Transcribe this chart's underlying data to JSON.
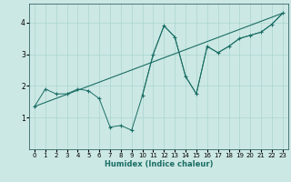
{
  "title": "",
  "xlabel": "Humidex (Indice chaleur)",
  "bg_color": "#cce8e4",
  "line_color": "#1a6e65",
  "grid_color": "#aad4d0",
  "xlim": [
    -0.5,
    23.5
  ],
  "ylim": [
    0,
    4.6
  ],
  "yticks": [
    1,
    2,
    3,
    4
  ],
  "xticks": [
    0,
    1,
    2,
    3,
    4,
    5,
    6,
    7,
    8,
    9,
    10,
    11,
    12,
    13,
    14,
    15,
    16,
    17,
    18,
    19,
    20,
    21,
    22,
    23
  ],
  "scatter_x": [
    0,
    1,
    2,
    3,
    4,
    5,
    6,
    7,
    8,
    9,
    10,
    11,
    12,
    13,
    14,
    15,
    16,
    17,
    18,
    19,
    20,
    21,
    22,
    23
  ],
  "scatter_y": [
    1.35,
    1.9,
    1.75,
    1.75,
    1.9,
    1.85,
    1.6,
    0.7,
    0.75,
    0.6,
    1.7,
    3.0,
    3.9,
    3.55,
    2.3,
    1.75,
    3.25,
    3.05,
    3.25,
    3.5,
    3.6,
    3.7,
    3.95,
    4.3
  ],
  "regline_x": [
    0,
    23
  ],
  "regline_y": [
    1.35,
    4.3
  ],
  "smooth_x": [
    10,
    11,
    12,
    13,
    14,
    15,
    16,
    17,
    18,
    19,
    20,
    21,
    22,
    23
  ],
  "smooth_y": [
    1.7,
    3.0,
    3.9,
    3.55,
    2.3,
    1.75,
    3.25,
    3.05,
    3.25,
    3.5,
    3.6,
    3.7,
    3.95,
    4.3
  ],
  "xlabel_fontsize": 6.0,
  "tick_fontsize": 5.0
}
